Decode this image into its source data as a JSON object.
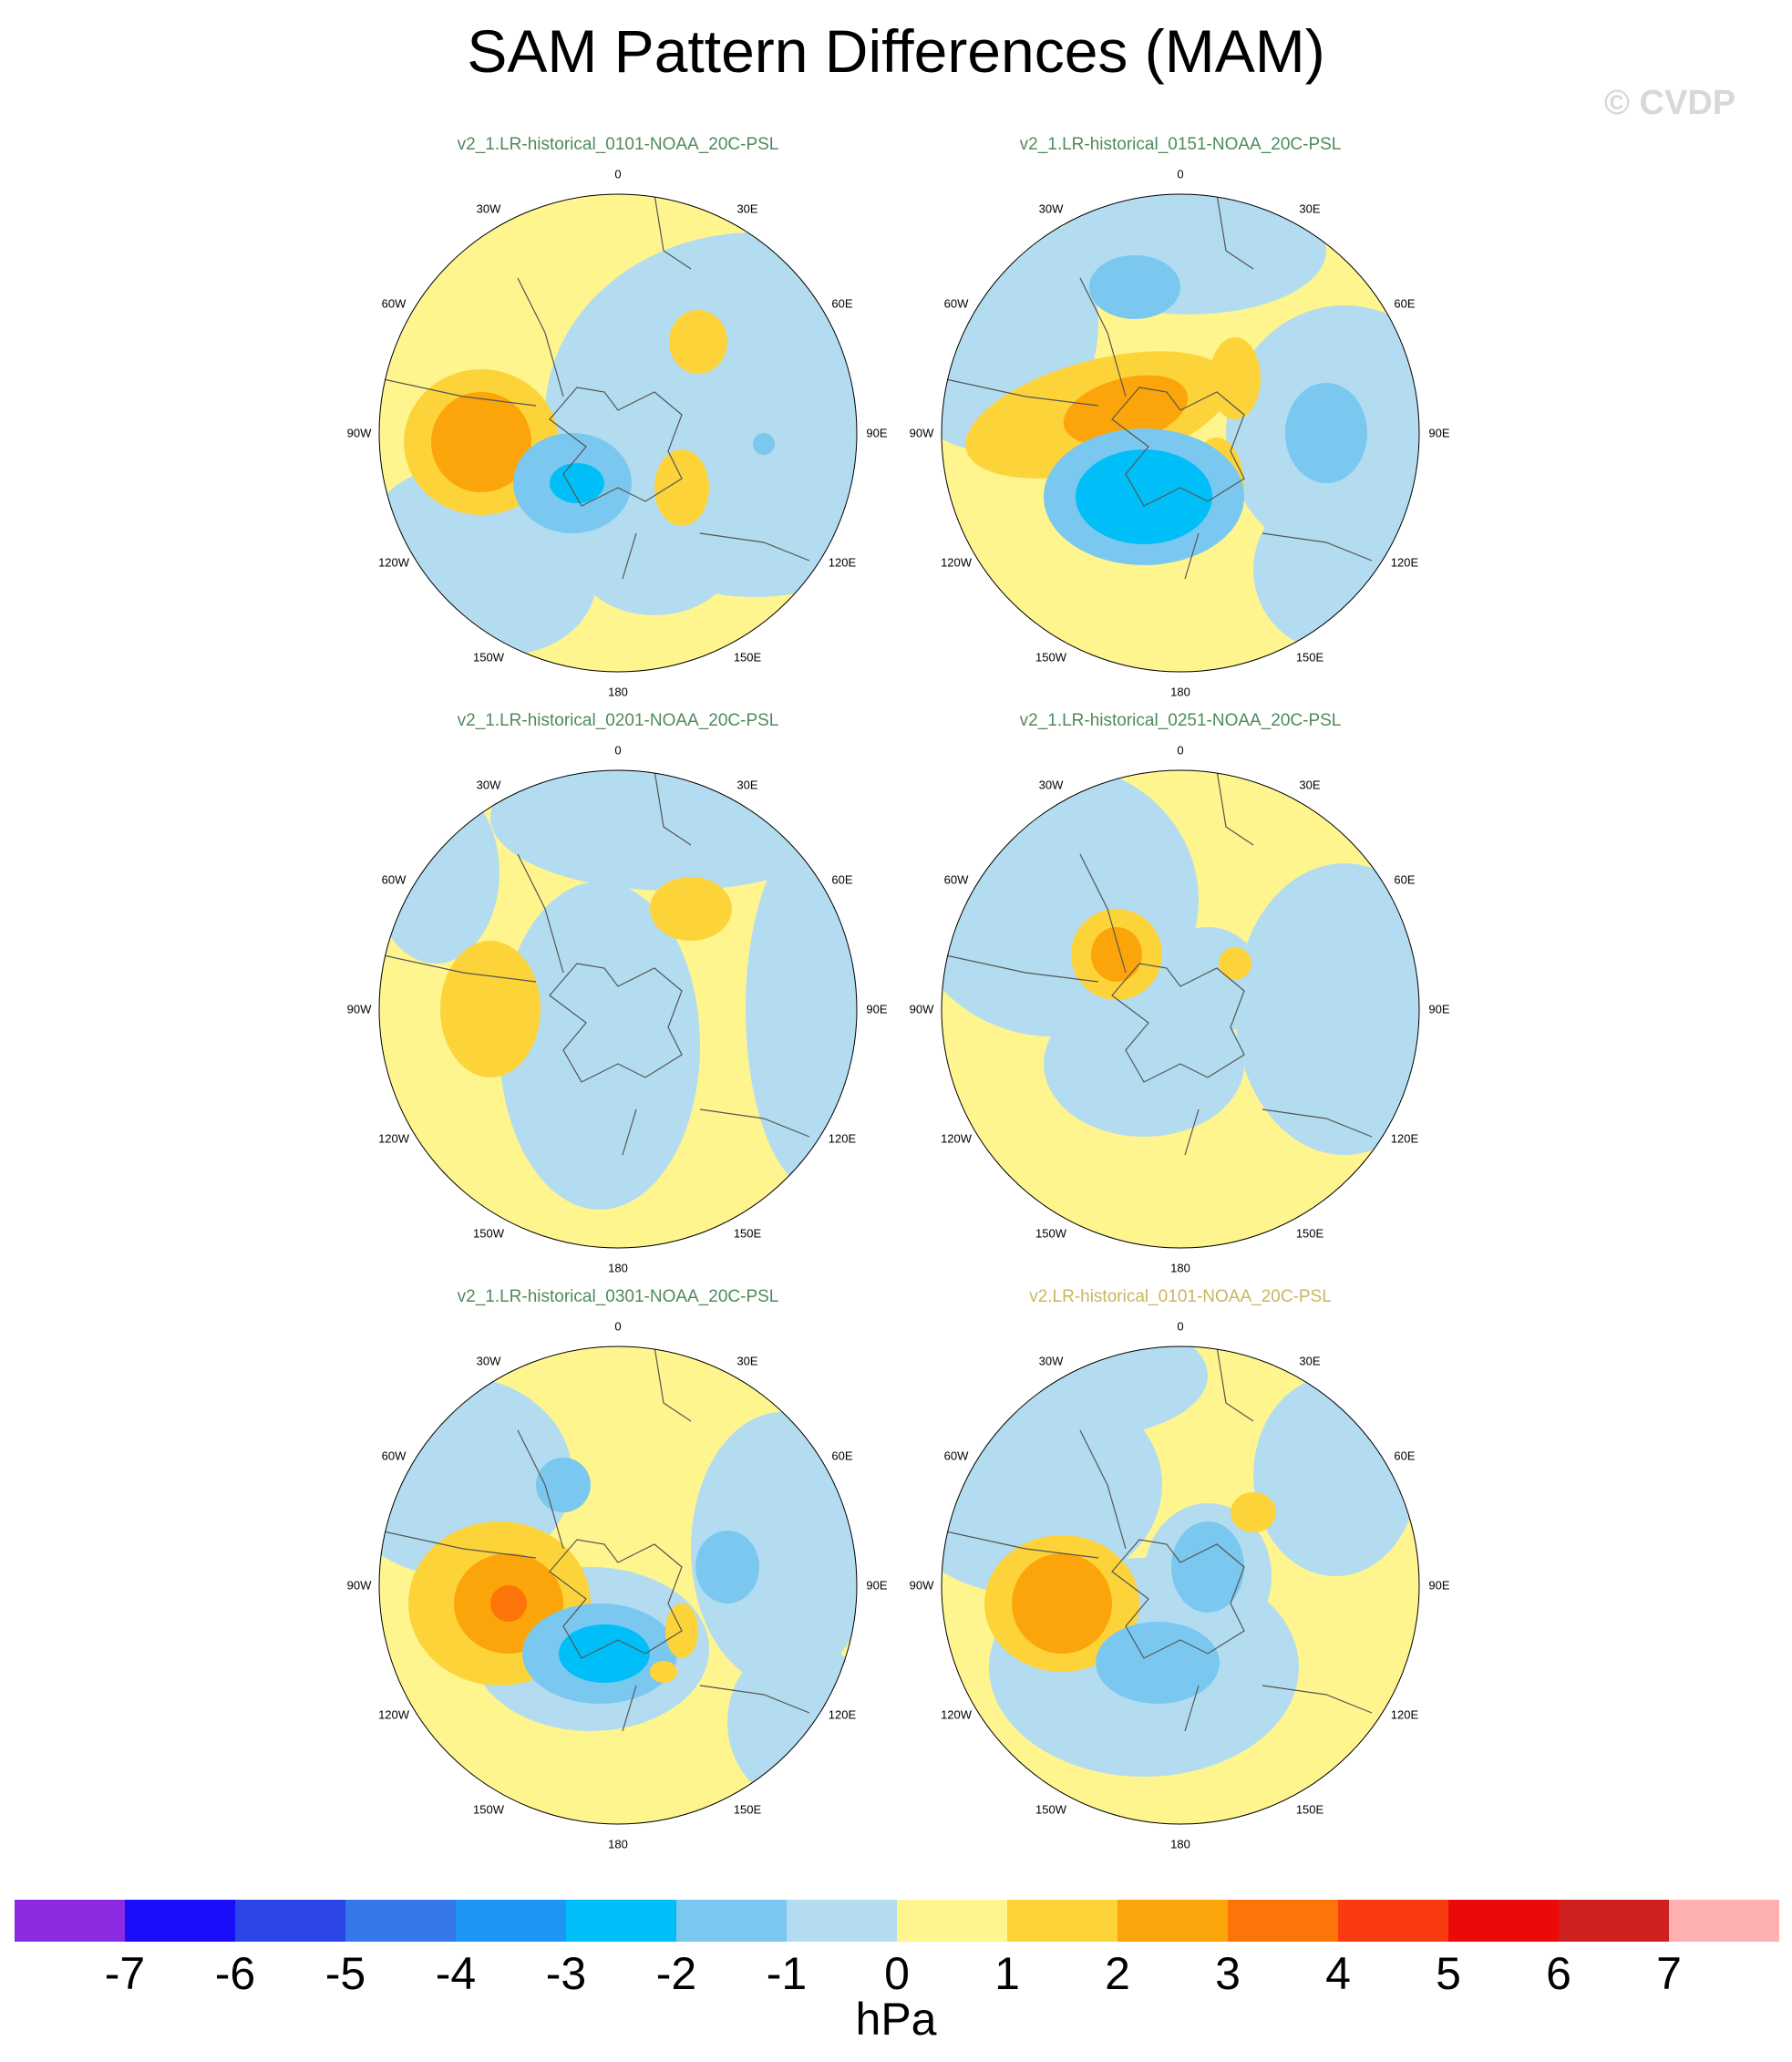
{
  "title": "SAM Pattern Differences (MAM)",
  "watermark": "© CVDP",
  "lon_labels": {
    "top": "0",
    "ne1": "30E",
    "ne2": "60E",
    "e": "90E",
    "se1": "120E",
    "se2": "150E",
    "bottom": "180",
    "sw2": "150W",
    "sw1": "120W",
    "w": "90W",
    "nw2": "60W",
    "nw1": "30W"
  },
  "panels": [
    {
      "title": "v2_1.LR-historical_0101-NOAA_20C-PSL",
      "title_color": "green"
    },
    {
      "title": "v2_1.LR-historical_0151-NOAA_20C-PSL",
      "title_color": "green"
    },
    {
      "title": "v2_1.LR-historical_0201-NOAA_20C-PSL",
      "title_color": "green"
    },
    {
      "title": "v2_1.LR-historical_0251-NOAA_20C-PSL",
      "title_color": "green"
    },
    {
      "title": "v2_1.LR-historical_0301-NOAA_20C-PSL",
      "title_color": "green"
    },
    {
      "title": "v2.LR-historical_0101-NOAA_20C-PSL",
      "title_color": "tan"
    }
  ],
  "colorbar": {
    "colors": [
      "#8a2be2",
      "#1a0dfa",
      "#2b45e6",
      "#3477ea",
      "#1e96f8",
      "#00bff8",
      "#7ac8f0",
      "#b3dcf0",
      "#fff58f",
      "#fdd33a",
      "#fca50a",
      "#fb7508",
      "#fa3a10",
      "#ea0a0a",
      "#cf1f1f",
      "#ffb0b0"
    ],
    "ticks": [
      "-7",
      "-6",
      "-5",
      "-4",
      "-3",
      "-2",
      "-1",
      "0",
      "1",
      "2",
      "3",
      "4",
      "5",
      "6",
      "7"
    ],
    "units": "hPa"
  }
}
